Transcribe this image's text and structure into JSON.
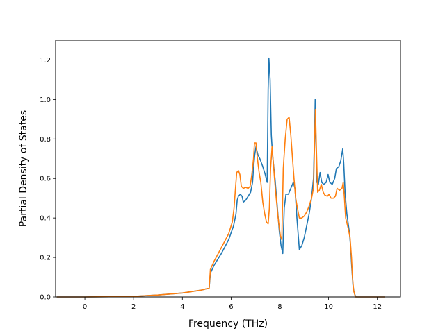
{
  "chart_data": {
    "type": "line",
    "xlabel": "Frequency (THz)",
    "ylabel": "Partial Density of States",
    "xlim": [
      -1.2,
      12.95
    ],
    "ylim": [
      0.0,
      1.3
    ],
    "xticks": [
      0,
      2,
      4,
      6,
      8,
      10,
      12
    ],
    "yticks": [
      0.0,
      0.2,
      0.4,
      0.6,
      0.8,
      1.0,
      1.2
    ],
    "xtick_labels": [
      "0",
      "2",
      "4",
      "6",
      "8",
      "10",
      "12"
    ],
    "ytick_labels": [
      "0.0",
      "0.2",
      "0.4",
      "0.6",
      "0.8",
      "1.0",
      "1.2"
    ],
    "grid": false,
    "legend": "none",
    "series": [
      {
        "color": "#1f77b4",
        "points": [
          [
            -1.15,
            0.0
          ],
          [
            0.0,
            0.0
          ],
          [
            1.0,
            0.001
          ],
          [
            2.0,
            0.003
          ],
          [
            3.0,
            0.01
          ],
          [
            4.0,
            0.02
          ],
          [
            4.8,
            0.035
          ],
          [
            5.1,
            0.045
          ],
          [
            5.15,
            0.12
          ],
          [
            5.3,
            0.16
          ],
          [
            5.6,
            0.22
          ],
          [
            5.9,
            0.29
          ],
          [
            6.1,
            0.36
          ],
          [
            6.2,
            0.42
          ],
          [
            6.25,
            0.49
          ],
          [
            6.3,
            0.51
          ],
          [
            6.38,
            0.52
          ],
          [
            6.45,
            0.51
          ],
          [
            6.5,
            0.48
          ],
          [
            6.6,
            0.49
          ],
          [
            6.7,
            0.51
          ],
          [
            6.8,
            0.53
          ],
          [
            6.88,
            0.58
          ],
          [
            6.92,
            0.65
          ],
          [
            6.97,
            0.72
          ],
          [
            7.02,
            0.76
          ],
          [
            7.1,
            0.72
          ],
          [
            7.18,
            0.7
          ],
          [
            7.3,
            0.66
          ],
          [
            7.4,
            0.62
          ],
          [
            7.48,
            0.58
          ],
          [
            7.52,
            1.05
          ],
          [
            7.55,
            1.21
          ],
          [
            7.6,
            1.1
          ],
          [
            7.65,
            0.82
          ],
          [
            7.7,
            0.72
          ],
          [
            7.8,
            0.6
          ],
          [
            7.9,
            0.45
          ],
          [
            7.98,
            0.33
          ],
          [
            8.05,
            0.26
          ],
          [
            8.12,
            0.22
          ],
          [
            8.18,
            0.45
          ],
          [
            8.25,
            0.52
          ],
          [
            8.35,
            0.52
          ],
          [
            8.45,
            0.55
          ],
          [
            8.55,
            0.58
          ],
          [
            8.62,
            0.55
          ],
          [
            8.7,
            0.4
          ],
          [
            8.8,
            0.24
          ],
          [
            8.9,
            0.26
          ],
          [
            9.0,
            0.3
          ],
          [
            9.1,
            0.36
          ],
          [
            9.2,
            0.42
          ],
          [
            9.3,
            0.5
          ],
          [
            9.38,
            0.6
          ],
          [
            9.43,
            0.85
          ],
          [
            9.45,
            1.0
          ],
          [
            9.48,
            0.8
          ],
          [
            9.52,
            0.58
          ],
          [
            9.58,
            0.57
          ],
          [
            9.65,
            0.63
          ],
          [
            9.72,
            0.58
          ],
          [
            9.8,
            0.57
          ],
          [
            9.9,
            0.58
          ],
          [
            9.98,
            0.62
          ],
          [
            10.05,
            0.58
          ],
          [
            10.15,
            0.57
          ],
          [
            10.25,
            0.6
          ],
          [
            10.32,
            0.65
          ],
          [
            10.42,
            0.66
          ],
          [
            10.5,
            0.69
          ],
          [
            10.58,
            0.75
          ],
          [
            10.62,
            0.68
          ],
          [
            10.68,
            0.52
          ],
          [
            10.75,
            0.42
          ],
          [
            10.85,
            0.33
          ],
          [
            10.9,
            0.26
          ],
          [
            10.95,
            0.15
          ],
          [
            11.0,
            0.06
          ],
          [
            11.05,
            0.02
          ],
          [
            11.12,
            0.0
          ],
          [
            11.5,
            0.0
          ],
          [
            12.3,
            0.0
          ]
        ]
      },
      {
        "color": "#ff7f0e",
        "points": [
          [
            -1.15,
            0.0
          ],
          [
            0.0,
            0.0
          ],
          [
            1.0,
            0.001
          ],
          [
            2.0,
            0.003
          ],
          [
            3.0,
            0.01
          ],
          [
            4.0,
            0.02
          ],
          [
            4.8,
            0.035
          ],
          [
            5.1,
            0.045
          ],
          [
            5.15,
            0.14
          ],
          [
            5.3,
            0.18
          ],
          [
            5.6,
            0.25
          ],
          [
            5.9,
            0.32
          ],
          [
            6.05,
            0.38
          ],
          [
            6.12,
            0.45
          ],
          [
            6.18,
            0.55
          ],
          [
            6.23,
            0.63
          ],
          [
            6.3,
            0.64
          ],
          [
            6.36,
            0.62
          ],
          [
            6.42,
            0.56
          ],
          [
            6.5,
            0.55
          ],
          [
            6.6,
            0.555
          ],
          [
            6.7,
            0.55
          ],
          [
            6.78,
            0.56
          ],
          [
            6.85,
            0.62
          ],
          [
            6.92,
            0.7
          ],
          [
            6.96,
            0.78
          ],
          [
            7.02,
            0.78
          ],
          [
            7.08,
            0.7
          ],
          [
            7.15,
            0.63
          ],
          [
            7.22,
            0.58
          ],
          [
            7.3,
            0.48
          ],
          [
            7.38,
            0.42
          ],
          [
            7.45,
            0.38
          ],
          [
            7.52,
            0.37
          ],
          [
            7.57,
            0.45
          ],
          [
            7.62,
            0.65
          ],
          [
            7.68,
            0.76
          ],
          [
            7.72,
            0.7
          ],
          [
            7.78,
            0.6
          ],
          [
            7.85,
            0.5
          ],
          [
            7.93,
            0.4
          ],
          [
            8.02,
            0.31
          ],
          [
            8.08,
            0.29
          ],
          [
            8.14,
            0.65
          ],
          [
            8.22,
            0.8
          ],
          [
            8.3,
            0.9
          ],
          [
            8.38,
            0.91
          ],
          [
            8.45,
            0.82
          ],
          [
            8.52,
            0.7
          ],
          [
            8.58,
            0.6
          ],
          [
            8.65,
            0.5
          ],
          [
            8.72,
            0.45
          ],
          [
            8.8,
            0.4
          ],
          [
            8.9,
            0.4
          ],
          [
            9.0,
            0.41
          ],
          [
            9.1,
            0.43
          ],
          [
            9.2,
            0.46
          ],
          [
            9.3,
            0.5
          ],
          [
            9.38,
            0.55
          ],
          [
            9.43,
            0.8
          ],
          [
            9.46,
            0.95
          ],
          [
            9.5,
            0.75
          ],
          [
            9.55,
            0.53
          ],
          [
            9.62,
            0.54
          ],
          [
            9.7,
            0.57
          ],
          [
            9.78,
            0.53
          ],
          [
            9.85,
            0.515
          ],
          [
            9.95,
            0.51
          ],
          [
            10.02,
            0.52
          ],
          [
            10.1,
            0.5
          ],
          [
            10.2,
            0.5
          ],
          [
            10.28,
            0.51
          ],
          [
            10.35,
            0.55
          ],
          [
            10.45,
            0.54
          ],
          [
            10.55,
            0.55
          ],
          [
            10.6,
            0.58
          ],
          [
            10.65,
            0.5
          ],
          [
            10.7,
            0.4
          ],
          [
            10.8,
            0.35
          ],
          [
            10.88,
            0.3
          ],
          [
            10.94,
            0.2
          ],
          [
            10.98,
            0.1
          ],
          [
            11.03,
            0.03
          ],
          [
            11.1,
            0.0
          ],
          [
            11.5,
            0.0
          ],
          [
            12.3,
            0.0
          ]
        ]
      }
    ]
  }
}
